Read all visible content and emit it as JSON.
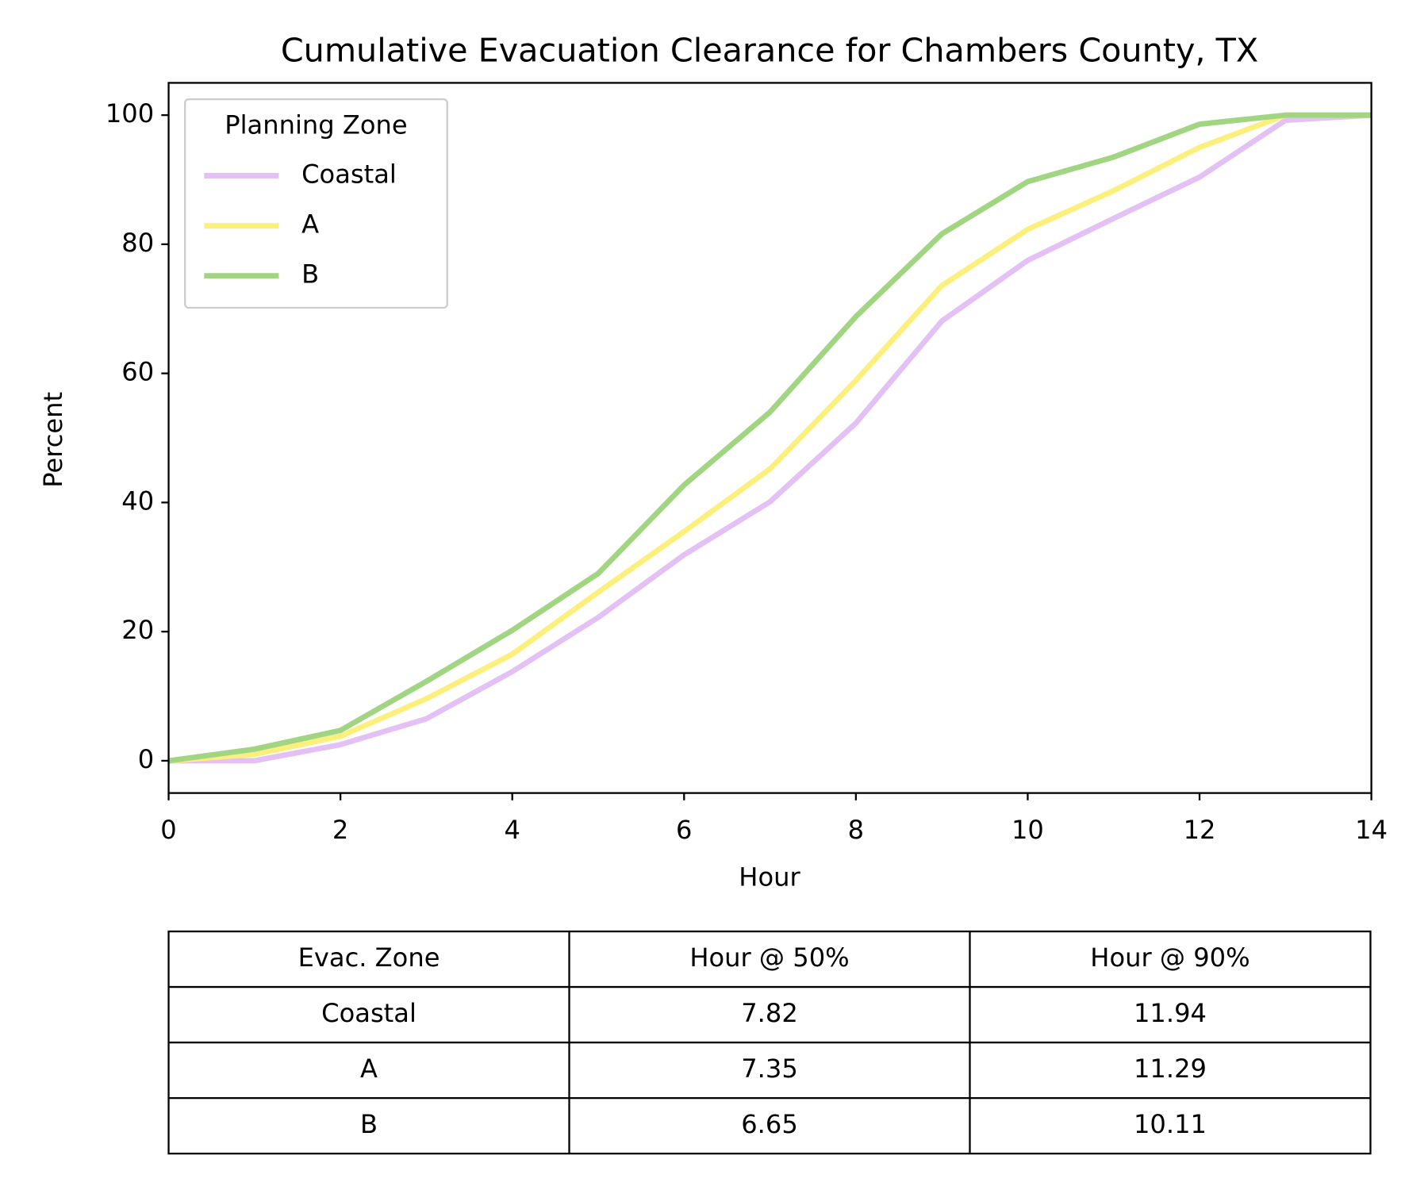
{
  "chart_data": {
    "type": "line",
    "title": "Cumulative Evacuation Clearance for Chambers County, TX",
    "x_label": "Hour",
    "y_label": "Percent",
    "x": [
      0,
      1,
      2,
      3,
      4,
      5,
      6,
      7,
      8,
      9,
      10,
      11,
      12,
      13,
      14
    ],
    "series": [
      {
        "name": "Coastal",
        "color": "#e4c1f5",
        "values": [
          0,
          0,
          2.5,
          6.5,
          13.8,
          22.2,
          31.9,
          40.1,
          52.3,
          68.1,
          77.5,
          84,
          90.4,
          99.2,
          100
        ]
      },
      {
        "name": "A",
        "color": "#fbf07e",
        "values": [
          0,
          1,
          3.8,
          9.6,
          16.5,
          26.1,
          35.5,
          45.2,
          58.9,
          73.6,
          82.3,
          88.3,
          95,
          100,
          100
        ]
      },
      {
        "name": "B",
        "color": "#a2d582",
        "values": [
          0,
          1.8,
          4.7,
          12.3,
          20.2,
          29,
          42.7,
          54,
          68.8,
          81.6,
          89.7,
          93.5,
          98.6,
          100,
          100
        ]
      }
    ],
    "xlim": [
      0,
      14
    ],
    "ylim": [
      -5,
      105
    ],
    "xticks": [
      0,
      2,
      4,
      6,
      8,
      10,
      12,
      14
    ],
    "yticks": [
      0,
      20,
      40,
      60,
      80,
      100
    ],
    "legend_title": "Planning Zone",
    "legend": "upper left"
  },
  "table": {
    "header": [
      "Evac. Zone",
      "Hour @ 50%",
      "Hour @ 90%"
    ],
    "rows": [
      [
        "Coastal",
        "7.82",
        "11.94"
      ],
      [
        "A",
        "7.35",
        "11.29"
      ],
      [
        "B",
        "6.65",
        "10.11"
      ]
    ]
  }
}
